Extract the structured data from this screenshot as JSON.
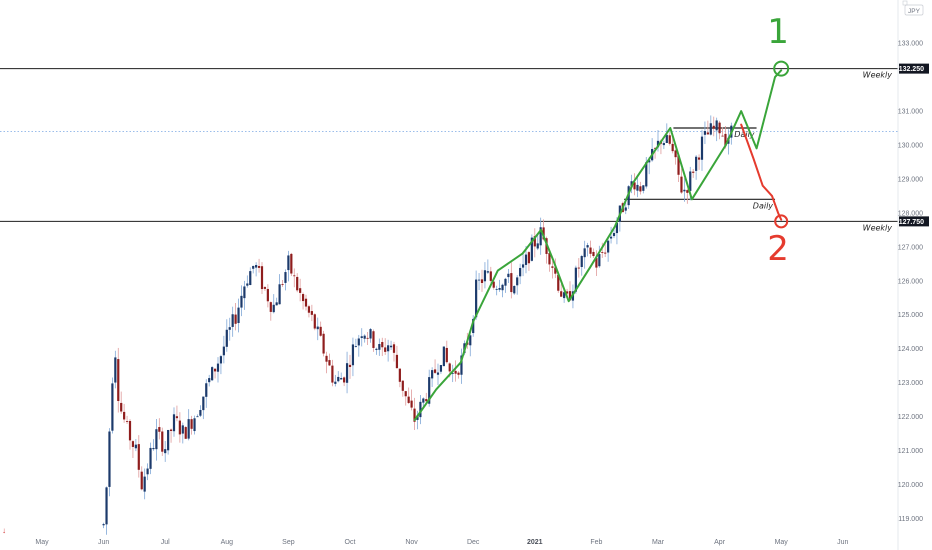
{
  "top_right": {
    "currency": "JPY",
    "icon": "menu-icon"
  },
  "colors": {
    "up_body": "#1c3a6b",
    "up_wick": "#7fa6d6",
    "down_body": "#8f1d1d",
    "down_wick": "#e09b9b",
    "green_path": "#3aa53a",
    "red_path": "#e53b2e",
    "level_line": "#1f1f1f",
    "dotted_line": "#8db4e8",
    "price_tag": "#131722"
  },
  "chart_data": {
    "type": "candlestick",
    "ylim": [
      118.6,
      133.8
    ],
    "x_axis_labels": [
      {
        "label": "May",
        "month": 0
      },
      {
        "label": "Jun",
        "month": 1
      },
      {
        "label": "Jul",
        "month": 2
      },
      {
        "label": "Aug",
        "month": 3
      },
      {
        "label": "Sep",
        "month": 4
      },
      {
        "label": "Oct",
        "month": 5
      },
      {
        "label": "Nov",
        "month": 6
      },
      {
        "label": "Dec",
        "month": 7
      },
      {
        "label": "2021",
        "month": 8,
        "bold": true
      },
      {
        "label": "Feb",
        "month": 9
      },
      {
        "label": "Mar",
        "month": 10
      },
      {
        "label": "Apr",
        "month": 11
      },
      {
        "label": "May",
        "month": 12
      },
      {
        "label": "Jun",
        "month": 13
      }
    ],
    "y_ticks": [
      "133.000",
      "131.000",
      "130.000",
      "129.000",
      "128.000",
      "127.000",
      "126.000",
      "125.000",
      "124.000",
      "123.000",
      "122.000",
      "121.000",
      "120.000",
      "119.000"
    ],
    "y_tick_values": [
      133,
      131,
      130,
      129,
      128,
      127,
      126,
      125,
      124,
      123,
      122,
      121,
      120,
      119
    ],
    "price_tags": [
      {
        "label": "132.250",
        "value": 132.25
      },
      {
        "label": "127.750",
        "value": 127.75
      }
    ],
    "horizontal_levels": [
      {
        "name": "weekly-upper",
        "value": 132.25,
        "label": "Weekly",
        "from_month": -1.0,
        "to_month": 13.6
      },
      {
        "name": "daily-upper",
        "value": 130.5,
        "label": "Daily",
        "from_month": 10.25,
        "to_month": 11.6
      },
      {
        "name": "daily-lower",
        "value": 128.4,
        "label": "Daily",
        "from_month": 9.45,
        "to_month": 11.9
      },
      {
        "name": "weekly-lower",
        "value": 127.75,
        "label": "Weekly",
        "from_month": -1.0,
        "to_month": 13.6
      }
    ],
    "dotted_level": 130.4,
    "close_path": [
      {
        "m": 1.0,
        "p": 118.8
      },
      {
        "m": 1.06,
        "p": 120.2
      },
      {
        "m": 1.12,
        "p": 122.6
      },
      {
        "m": 1.18,
        "p": 124.2
      },
      {
        "m": 1.25,
        "p": 122.4
      },
      {
        "m": 1.38,
        "p": 121.6
      },
      {
        "m": 1.52,
        "p": 121.0
      },
      {
        "m": 1.62,
        "p": 120.0
      },
      {
        "m": 1.72,
        "p": 120.6
      },
      {
        "m": 1.85,
        "p": 121.5
      },
      {
        "m": 2.0,
        "p": 121.1
      },
      {
        "m": 2.15,
        "p": 121.9
      },
      {
        "m": 2.3,
        "p": 121.5
      },
      {
        "m": 2.5,
        "p": 122.1
      },
      {
        "m": 2.7,
        "p": 123.0
      },
      {
        "m": 2.9,
        "p": 123.8
      },
      {
        "m": 3.0,
        "p": 124.3
      },
      {
        "m": 3.15,
        "p": 125.0
      },
      {
        "m": 3.3,
        "p": 126.0
      },
      {
        "m": 3.45,
        "p": 126.5
      },
      {
        "m": 3.6,
        "p": 125.8
      },
      {
        "m": 3.75,
        "p": 125.2
      },
      {
        "m": 3.9,
        "p": 126.0
      },
      {
        "m": 4.0,
        "p": 126.5
      },
      {
        "m": 4.1,
        "p": 126.0
      },
      {
        "m": 4.25,
        "p": 125.3
      },
      {
        "m": 4.4,
        "p": 124.8
      },
      {
        "m": 4.6,
        "p": 123.8
      },
      {
        "m": 4.75,
        "p": 123.0
      },
      {
        "m": 4.9,
        "p": 123.2
      },
      {
        "m": 5.05,
        "p": 124.0
      },
      {
        "m": 5.2,
        "p": 124.6
      },
      {
        "m": 5.35,
        "p": 124.3
      },
      {
        "m": 5.5,
        "p": 123.9
      },
      {
        "m": 5.65,
        "p": 124.2
      },
      {
        "m": 5.8,
        "p": 123.2
      },
      {
        "m": 5.95,
        "p": 122.3
      },
      {
        "m": 6.05,
        "p": 121.9
      },
      {
        "m": 6.2,
        "p": 122.5
      },
      {
        "m": 6.35,
        "p": 123.2
      },
      {
        "m": 6.5,
        "p": 123.9
      },
      {
        "m": 6.65,
        "p": 123.2
      },
      {
        "m": 6.8,
        "p": 123.6
      },
      {
        "m": 6.95,
        "p": 124.5
      },
      {
        "m": 7.05,
        "p": 125.8
      },
      {
        "m": 7.2,
        "p": 126.2
      },
      {
        "m": 7.35,
        "p": 125.9
      },
      {
        "m": 7.5,
        "p": 126.1
      },
      {
        "m": 7.65,
        "p": 125.8
      },
      {
        "m": 7.8,
        "p": 126.3
      },
      {
        "m": 7.95,
        "p": 127.0
      },
      {
        "m": 8.1,
        "p": 127.4
      },
      {
        "m": 8.25,
        "p": 126.7
      },
      {
        "m": 8.4,
        "p": 125.8
      },
      {
        "m": 8.5,
        "p": 125.3
      },
      {
        "m": 8.6,
        "p": 125.8
      },
      {
        "m": 8.75,
        "p": 126.6
      },
      {
        "m": 8.9,
        "p": 126.9
      },
      {
        "m": 9.0,
        "p": 126.5
      },
      {
        "m": 9.15,
        "p": 127.0
      },
      {
        "m": 9.3,
        "p": 127.6
      },
      {
        "m": 9.45,
        "p": 128.3
      },
      {
        "m": 9.6,
        "p": 129.0
      },
      {
        "m": 9.7,
        "p": 128.7
      },
      {
        "m": 9.8,
        "p": 129.2
      },
      {
        "m": 9.9,
        "p": 129.6
      },
      {
        "m": 10.05,
        "p": 130.2
      },
      {
        "m": 10.2,
        "p": 130.0
      },
      {
        "m": 10.3,
        "p": 129.3
      },
      {
        "m": 10.4,
        "p": 128.6
      },
      {
        "m": 10.5,
        "p": 128.9
      },
      {
        "m": 10.6,
        "p": 129.5
      },
      {
        "m": 10.72,
        "p": 130.1
      },
      {
        "m": 10.85,
        "p": 130.4
      },
      {
        "m": 11.0,
        "p": 130.5
      },
      {
        "m": 11.1,
        "p": 130.2
      },
      {
        "m": 11.2,
        "p": 130.4
      }
    ],
    "annotations": {
      "green_projection": [
        {
          "m": 6.05,
          "p": 121.9
        },
        {
          "m": 6.4,
          "p": 122.8
        },
        {
          "m": 6.8,
          "p": 123.6
        },
        {
          "m": 7.0,
          "p": 124.8
        },
        {
          "m": 7.4,
          "p": 126.3
        },
        {
          "m": 7.8,
          "p": 126.8
        },
        {
          "m": 8.1,
          "p": 127.5
        },
        {
          "m": 8.3,
          "p": 126.6
        },
        {
          "m": 8.55,
          "p": 125.4
        },
        {
          "m": 8.9,
          "p": 126.4
        },
        {
          "m": 9.3,
          "p": 127.6
        },
        {
          "m": 9.6,
          "p": 128.9
        },
        {
          "m": 10.2,
          "p": 130.5
        },
        {
          "m": 10.55,
          "p": 128.4
        },
        {
          "m": 11.1,
          "p": 130.0
        },
        {
          "m": 11.35,
          "p": 131.0
        },
        {
          "m": 11.6,
          "p": 129.9
        },
        {
          "m": 11.9,
          "p": 132.0
        },
        {
          "m": 12.0,
          "p": 132.2
        }
      ],
      "red_projection": [
        {
          "m": 11.35,
          "p": 130.6
        },
        {
          "m": 11.55,
          "p": 129.6
        },
        {
          "m": 11.7,
          "p": 128.8
        },
        {
          "m": 11.85,
          "p": 128.5
        },
        {
          "m": 11.95,
          "p": 128.0
        },
        {
          "m": 12.0,
          "p": 127.8
        }
      ],
      "hand_labels": [
        {
          "text": "1",
          "color": "green",
          "m": 11.95,
          "p": 133.3
        },
        {
          "text": "2",
          "color": "red",
          "m": 11.95,
          "p": 126.9
        }
      ]
    }
  }
}
